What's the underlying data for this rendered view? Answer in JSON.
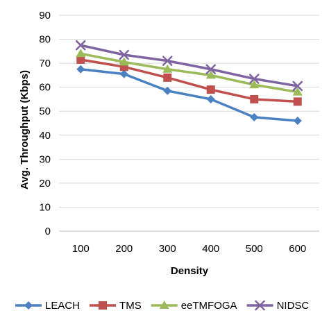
{
  "chart_data": {
    "type": "line",
    "xlabel": "Density",
    "ylabel": "Avg. Throughput (Kbps)",
    "categories": [
      "100",
      "200",
      "300",
      "400",
      "500",
      "600"
    ],
    "ylim": [
      0,
      90
    ],
    "yticks": [
      0,
      10,
      20,
      30,
      40,
      50,
      60,
      70,
      80,
      90
    ],
    "grid": true,
    "legend_position": "bottom",
    "series": [
      {
        "name": "LEACH",
        "color": "#4a81c3",
        "marker": "diamond",
        "values": [
          67.5,
          65.5,
          58.5,
          55,
          47.5,
          46
        ]
      },
      {
        "name": "TMS",
        "color": "#c0504d",
        "marker": "square",
        "values": [
          71.5,
          68.5,
          64,
          59,
          55,
          54
        ]
      },
      {
        "name": "eeTMFOGA",
        "color": "#9bbb59",
        "marker": "triangle",
        "values": [
          74,
          70.5,
          67.5,
          65,
          61,
          58
        ]
      },
      {
        "name": "NIDSC",
        "color": "#8064a2",
        "marker": "x",
        "values": [
          77.5,
          73.5,
          71,
          67.5,
          63.5,
          60.5
        ]
      }
    ]
  }
}
